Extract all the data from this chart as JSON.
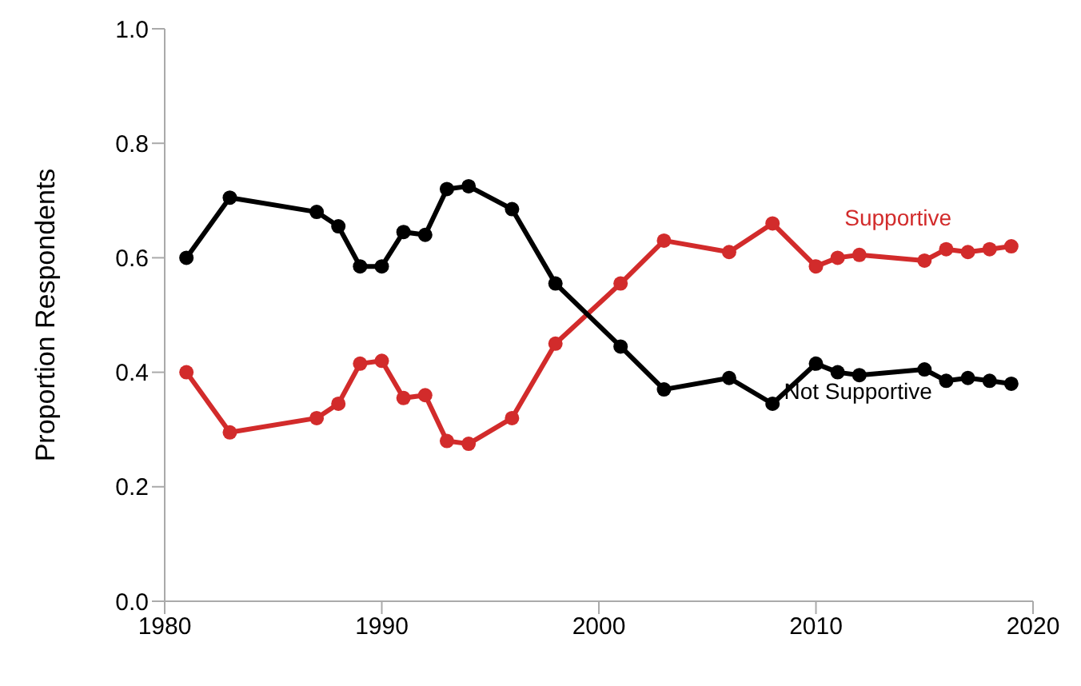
{
  "chart_data": {
    "type": "line",
    "ylabel": "Proportion Respondents",
    "x": [
      1981,
      1983,
      1987,
      1988,
      1989,
      1990,
      1991,
      1992,
      1993,
      1994,
      1996,
      1998,
      2001,
      2003,
      2006,
      2008,
      2010,
      2011,
      2012,
      2015,
      2016,
      2017,
      2018,
      2019
    ],
    "series": [
      {
        "name": "Supportive",
        "color": "#d22b2b",
        "values": [
          0.4,
          0.295,
          0.32,
          0.345,
          0.415,
          0.42,
          0.355,
          0.36,
          0.28,
          0.275,
          0.32,
          0.45,
          0.555,
          0.63,
          0.61,
          0.66,
          0.585,
          0.6,
          0.605,
          0.595,
          0.615,
          0.61,
          0.615,
          0.62
        ]
      },
      {
        "name": "Not Supportive",
        "color": "#000000",
        "values": [
          0.6,
          0.705,
          0.68,
          0.655,
          0.585,
          0.585,
          0.645,
          0.64,
          0.72,
          0.725,
          0.685,
          0.555,
          0.445,
          0.37,
          0.39,
          0.345,
          0.415,
          0.4,
          0.395,
          0.405,
          0.385,
          0.39,
          0.385,
          0.38
        ]
      }
    ],
    "xlim": [
      1980,
      2020
    ],
    "xticks": [
      1980,
      1990,
      2000,
      2010,
      2020
    ],
    "ylim": [
      0,
      1
    ],
    "yticks": [
      {
        "value": 0,
        "label": "0.0"
      },
      0.2,
      0.4,
      0.6,
      0.8,
      {
        "value": 1,
        "label": "1.0"
      }
    ],
    "marker": "circle",
    "line_style": "solid",
    "grid": false,
    "legend": false
  }
}
